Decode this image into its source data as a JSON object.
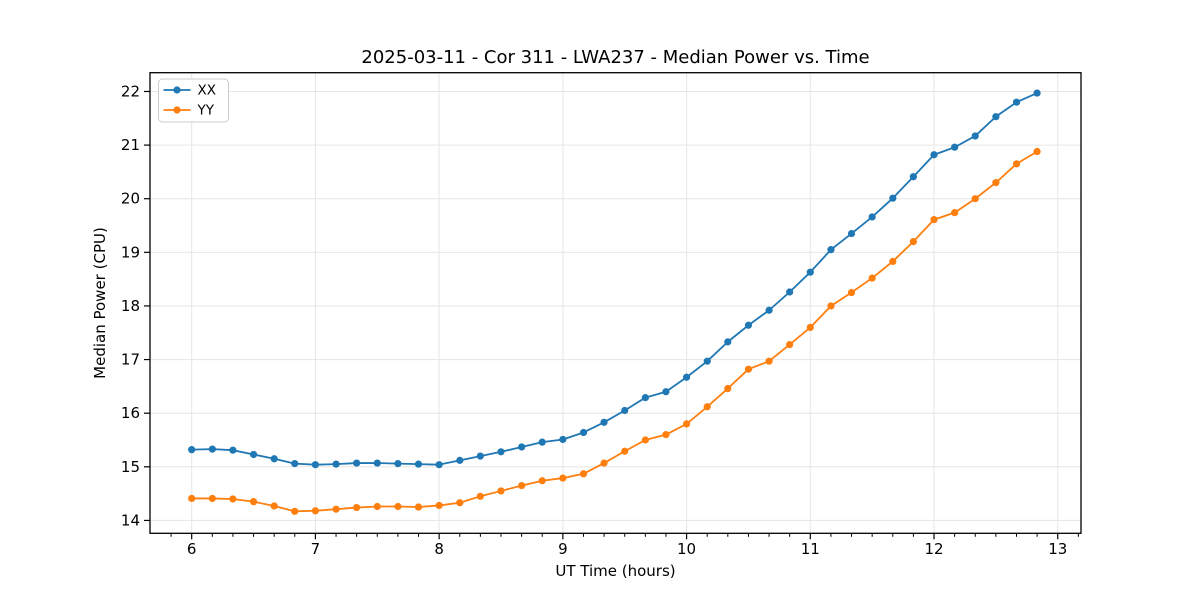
{
  "figure": {
    "background": "#ffffff",
    "plot_background": "#ffffff",
    "spine_color": "#000000",
    "grid_color": "#e6e6e6",
    "tick_color": "#000000"
  },
  "chart_data": {
    "type": "line",
    "title": "2025-03-11 - Cor 311 - LWA237 - Median Power vs. Time",
    "xlabel": "UT Time (hours)",
    "ylabel": "Median Power (CPU)",
    "xlim": [
      5.663,
      13.188
    ],
    "ylim": [
      13.76,
      22.35
    ],
    "x_ticks": [
      6,
      7,
      8,
      9,
      10,
      11,
      12,
      13
    ],
    "y_ticks": [
      14,
      15,
      16,
      17,
      18,
      19,
      20,
      21,
      22
    ],
    "x_minor_step": 0.166667,
    "grid": true,
    "legend_position": "upper left",
    "marker": "o",
    "x": [
      6.0,
      6.167,
      6.333,
      6.5,
      6.667,
      6.833,
      7.0,
      7.167,
      7.333,
      7.5,
      7.667,
      7.833,
      8.0,
      8.167,
      8.333,
      8.5,
      8.667,
      8.833,
      9.0,
      9.167,
      9.333,
      9.5,
      9.667,
      9.833,
      10.0,
      10.167,
      10.333,
      10.5,
      10.667,
      10.833,
      11.0,
      11.167,
      11.333,
      11.5,
      11.667,
      11.833,
      12.0,
      12.167,
      12.333,
      12.5,
      12.667,
      12.833
    ],
    "series": [
      {
        "name": "XX",
        "color": "#1f77b4",
        "values": [
          15.32,
          15.33,
          15.31,
          15.23,
          15.15,
          15.06,
          15.04,
          15.05,
          15.07,
          15.07,
          15.06,
          15.05,
          15.04,
          15.12,
          15.2,
          15.28,
          15.37,
          15.46,
          15.51,
          15.64,
          15.83,
          16.05,
          16.29,
          16.4,
          16.67,
          16.97,
          17.33,
          17.64,
          17.92,
          18.26,
          18.63,
          19.05,
          19.35,
          19.66,
          20.01,
          20.41,
          20.82,
          20.96,
          21.17,
          21.53,
          21.8,
          21.97
        ]
      },
      {
        "name": "YY",
        "color": "#ff7f0e",
        "values": [
          14.41,
          14.41,
          14.4,
          14.35,
          14.27,
          14.17,
          14.18,
          14.21,
          14.24,
          14.26,
          14.26,
          14.25,
          14.28,
          14.33,
          14.45,
          14.55,
          14.65,
          14.74,
          14.79,
          14.87,
          15.07,
          15.29,
          15.5,
          15.6,
          15.8,
          16.12,
          16.46,
          16.82,
          16.97,
          17.28,
          17.6,
          18.0,
          18.25,
          18.52,
          18.83,
          19.2,
          19.61,
          19.74,
          20.0,
          20.3,
          20.65,
          20.88
        ]
      }
    ]
  }
}
